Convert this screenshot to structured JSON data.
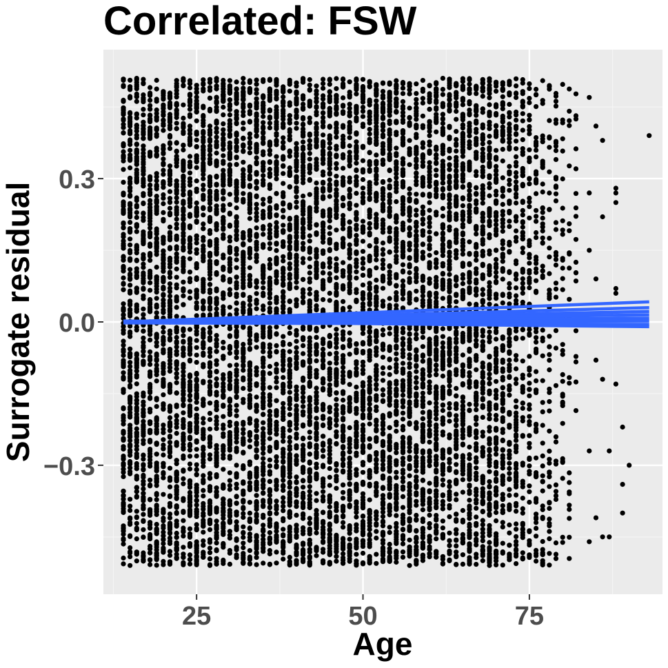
{
  "chart_data": {
    "type": "scatter",
    "title": "Correlated: FSW",
    "xlabel": "Age",
    "ylabel": "Surrogate residual",
    "xlim": [
      11,
      95
    ],
    "ylim": [
      -0.57,
      0.57
    ],
    "x_ticks": [
      25,
      50,
      75
    ],
    "x_tick_labels": [
      "25",
      "50",
      "75"
    ],
    "y_ticks": [
      -0.3,
      0.0,
      0.3
    ],
    "y_tick_labels": [
      "−0.3",
      "0.0",
      "0.3"
    ],
    "grid": true,
    "legend": "none",
    "colors": {
      "panel_background": "#ebebeb",
      "grid_major": "#ffffff",
      "grid_minor": "#f5f5f5",
      "points": "#000000",
      "fit_lines": "#3366ff"
    },
    "point_density": {
      "age_range": [
        14,
        82
      ],
      "residual_range": [
        -0.51,
        0.51
      ],
      "note": "dense uniform band of integer-age points; sparse beyond age 82"
    },
    "sparse_points": [
      {
        "x": 84,
        "y": 0.47
      },
      {
        "x": 85,
        "y": 0.41
      },
      {
        "x": 86,
        "y": 0.38
      },
      {
        "x": 84,
        "y": 0.27
      },
      {
        "x": 86,
        "y": 0.22
      },
      {
        "x": 84,
        "y": 0.15
      },
      {
        "x": 88,
        "y": 0.28
      },
      {
        "x": 88,
        "y": 0.27
      },
      {
        "x": 88,
        "y": 0.25
      },
      {
        "x": 88,
        "y": 0.07
      },
      {
        "x": 88,
        "y": 0.06
      },
      {
        "x": 85,
        "y": 0.09
      },
      {
        "x": 85,
        "y": -0.08
      },
      {
        "x": 86,
        "y": -0.12
      },
      {
        "x": 88,
        "y": -0.13
      },
      {
        "x": 89,
        "y": -0.22
      },
      {
        "x": 84,
        "y": -0.27
      },
      {
        "x": 87,
        "y": -0.27
      },
      {
        "x": 90,
        "y": -0.3
      },
      {
        "x": 89,
        "y": -0.34
      },
      {
        "x": 89,
        "y": -0.4
      },
      {
        "x": 85,
        "y": -0.41
      },
      {
        "x": 86,
        "y": -0.45
      },
      {
        "x": 84,
        "y": -0.46
      },
      {
        "x": 87,
        "y": -0.45
      },
      {
        "x": 93,
        "y": 0.39
      }
    ],
    "series": [
      {
        "x": [
          14,
          93
        ],
        "y": [
          0.0,
          0.042
        ]
      },
      {
        "x": [
          14,
          93
        ],
        "y": [
          0.0,
          0.03
        ]
      },
      {
        "x": [
          14,
          93
        ],
        "y": [
          0.0,
          0.022
        ]
      },
      {
        "x": [
          14,
          93
        ],
        "y": [
          0.0,
          0.015
        ]
      },
      {
        "x": [
          14,
          93
        ],
        "y": [
          0.0,
          0.008
        ]
      },
      {
        "x": [
          14,
          93
        ],
        "y": [
          0.0,
          0.002
        ]
      },
      {
        "x": [
          14,
          93
        ],
        "y": [
          -0.002,
          -0.005
        ]
      },
      {
        "x": [
          14,
          93
        ],
        "y": [
          0.002,
          -0.01
        ]
      }
    ]
  }
}
